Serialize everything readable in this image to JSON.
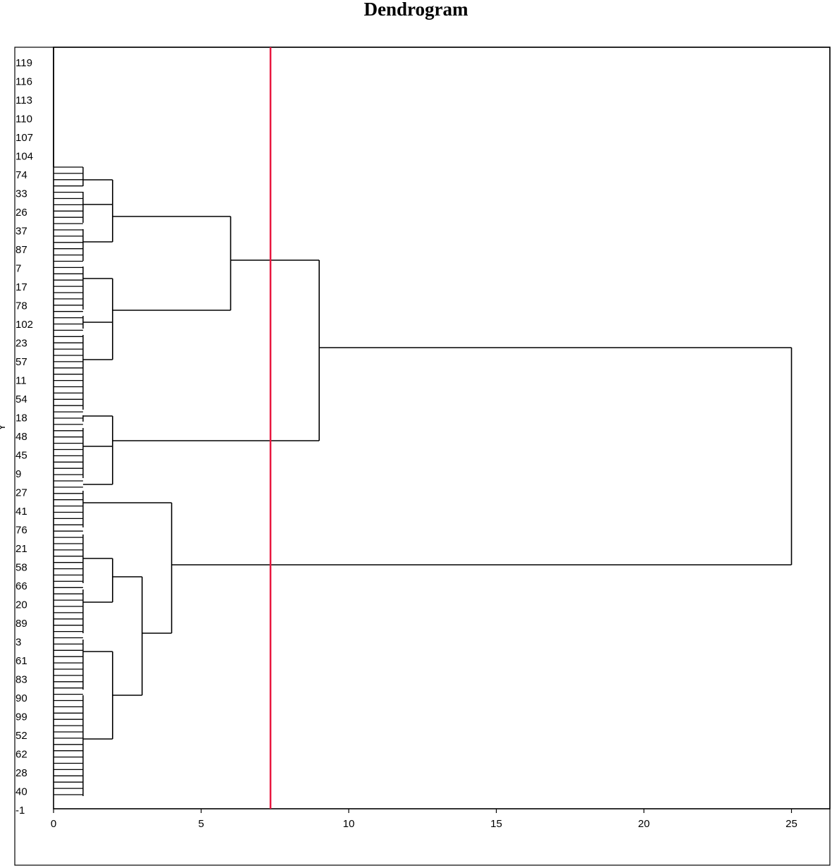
{
  "chart_data": {
    "type": "dendrogram",
    "title": "Dendrogram",
    "ylabel": "Y",
    "xlabel": "",
    "xlim": [
      0,
      25
    ],
    "x_ticks": [
      0,
      5,
      10,
      15,
      20,
      25
    ],
    "leaf_labels": [
      "119",
      "116",
      "113",
      "110",
      "107",
      "104",
      "74",
      "33",
      "26",
      "37",
      "87",
      "7",
      "17",
      "78",
      "102",
      "23",
      "57",
      "11",
      "54",
      "18",
      "48",
      "45",
      "9",
      "27",
      "41",
      "76",
      "21",
      "58",
      "66",
      "20",
      "89",
      "3",
      "61",
      "83",
      "90",
      "99",
      "52",
      "62",
      "28",
      "40",
      "-1"
    ],
    "cut_line": {
      "x": 7.35,
      "color": "#e8173f"
    },
    "clusters": [
      {
        "height": 1,
        "from_y": 1097,
        "to_y": 1129
      },
      {
        "height": 2,
        "from_y": 255,
        "to_y": 343
      },
      {
        "height": 2,
        "from_y": 395,
        "to_y": 510
      },
      {
        "height": 6,
        "from_y": 307,
        "to_y": 440
      },
      {
        "height": 2,
        "from_y": 590,
        "to_y": 687
      },
      {
        "height": 9,
        "from_y": 369,
        "to_y": 625
      },
      {
        "height": 2,
        "from_y": 792,
        "to_y": 854
      },
      {
        "height": 2,
        "from_y": 924,
        "to_y": 1048
      },
      {
        "height": 3,
        "from_y": 818,
        "to_y": 986
      },
      {
        "height": 4,
        "from_y": 713,
        "to_y": 898
      },
      {
        "height": 25,
        "from_y": 493,
        "to_y": 801
      }
    ]
  }
}
